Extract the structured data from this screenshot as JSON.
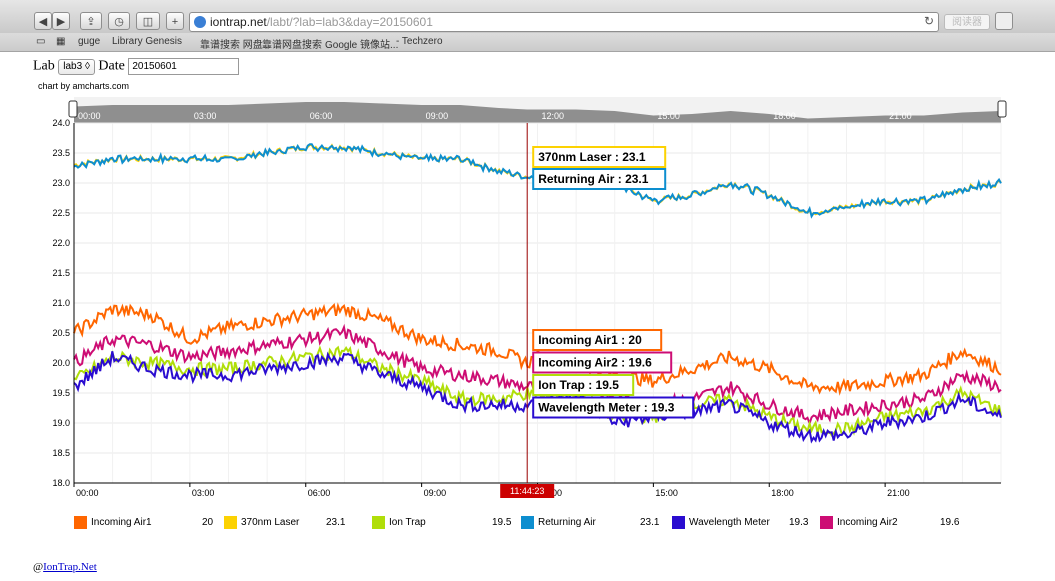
{
  "browser": {
    "url_host": "iontrap.net",
    "url_path": "/labt/?lab=lab3&day=20150601",
    "reader_label": "阅读器",
    "bookmarks": [
      "guge",
      "Library Genesis",
      "靠谱搜索 网盘...",
      "靠谱网盘搜索",
      "Google 镜像站...",
      "- Techzero"
    ]
  },
  "controls": {
    "lab_label": "Lab",
    "lab_value": "lab3",
    "date_label": "Date",
    "date_value": "20150601"
  },
  "credit": "chart by amcharts.com",
  "footer": {
    "at": "@",
    "link": "IonTrap.Net"
  },
  "cursor_time": "11:44:23",
  "chart_data": {
    "type": "line",
    "ylim": [
      18.0,
      24.0
    ],
    "yticks": [
      "24.0",
      "23.5",
      "23.0",
      "22.5",
      "22.0",
      "21.5",
      "21.0",
      "20.5",
      "20.0",
      "19.5",
      "19.0",
      "18.5",
      "18.0"
    ],
    "xlim_hours": [
      0,
      24
    ],
    "xticks": [
      "00:00",
      "03:00",
      "06:00",
      "09:00",
      "12:00",
      "15:00",
      "18:00",
      "21:00"
    ],
    "x": [
      "00:00",
      "01:00",
      "02:00",
      "03:00",
      "04:00",
      "05:00",
      "06:00",
      "07:00",
      "08:00",
      "09:00",
      "10:00",
      "11:00",
      "11:44",
      "12:00",
      "13:00",
      "14:00",
      "15:00",
      "16:00",
      "17:00",
      "18:00",
      "19:00",
      "20:00",
      "21:00",
      "22:00",
      "23:00",
      "23:59"
    ],
    "series": [
      {
        "name": "Incoming Air1",
        "color": "#ff6600",
        "current": "20",
        "values": [
          20.5,
          20.9,
          20.8,
          20.4,
          20.6,
          20.7,
          20.8,
          20.9,
          20.7,
          20.4,
          20.3,
          20.2,
          20.0,
          20.1,
          20.0,
          19.8,
          19.7,
          19.9,
          20.1,
          19.9,
          19.6,
          19.6,
          19.7,
          19.8,
          20.2,
          19.9
        ]
      },
      {
        "name": "370nm Laser",
        "color": "#fcd202",
        "current": "23.1",
        "values": [
          23.3,
          23.4,
          23.4,
          23.4,
          23.4,
          23.5,
          23.6,
          23.6,
          23.5,
          23.4,
          23.4,
          23.2,
          23.1,
          23.1,
          23.1,
          23.0,
          22.7,
          22.8,
          23.0,
          22.8,
          22.5,
          22.6,
          22.7,
          22.7,
          22.9,
          23.0
        ]
      },
      {
        "name": "Ion Trap",
        "color": "#b0de09",
        "current": "19.5",
        "values": [
          19.7,
          20.1,
          20.0,
          19.9,
          19.9,
          20.0,
          20.1,
          20.2,
          19.9,
          19.7,
          19.4,
          19.4,
          19.5,
          19.4,
          19.5,
          19.1,
          19.1,
          19.3,
          19.4,
          19.1,
          18.9,
          18.9,
          19.1,
          19.2,
          19.5,
          19.2
        ]
      },
      {
        "name": "Returning Air",
        "color": "#0d8ecf",
        "current": "23.1",
        "values": [
          23.3,
          23.4,
          23.4,
          23.4,
          23.4,
          23.5,
          23.6,
          23.6,
          23.5,
          23.4,
          23.4,
          23.2,
          23.1,
          23.1,
          23.1,
          23.0,
          22.7,
          22.8,
          23.0,
          22.8,
          22.5,
          22.6,
          22.7,
          22.7,
          22.9,
          23.0
        ]
      },
      {
        "name": "Wavelength Meter",
        "color": "#2a0cd0",
        "current": "19.3",
        "values": [
          19.6,
          20.1,
          19.9,
          19.8,
          19.8,
          19.9,
          20.0,
          20.1,
          19.8,
          19.6,
          19.3,
          19.3,
          19.3,
          19.3,
          19.5,
          19.0,
          19.1,
          19.2,
          19.3,
          19.0,
          18.8,
          18.8,
          19.0,
          19.1,
          19.4,
          19.1
        ]
      },
      {
        "name": "Incoming Air2",
        "color": "#cd0d74",
        "current": "19.6",
        "values": [
          20.0,
          20.4,
          20.3,
          20.1,
          20.2,
          20.3,
          20.4,
          20.5,
          20.2,
          19.9,
          19.8,
          19.7,
          19.6,
          19.6,
          19.7,
          19.4,
          19.3,
          19.4,
          19.6,
          19.3,
          19.1,
          19.2,
          19.3,
          19.4,
          19.8,
          19.6
        ]
      }
    ],
    "balloon_order_top": [
      "370nm Laser",
      "Returning Air"
    ],
    "balloon_order_bottom": [
      "Incoming Air1",
      "Incoming Air2",
      "Ion Trap",
      "Wavelength Meter"
    ],
    "grid": true,
    "legend": "bottom"
  }
}
